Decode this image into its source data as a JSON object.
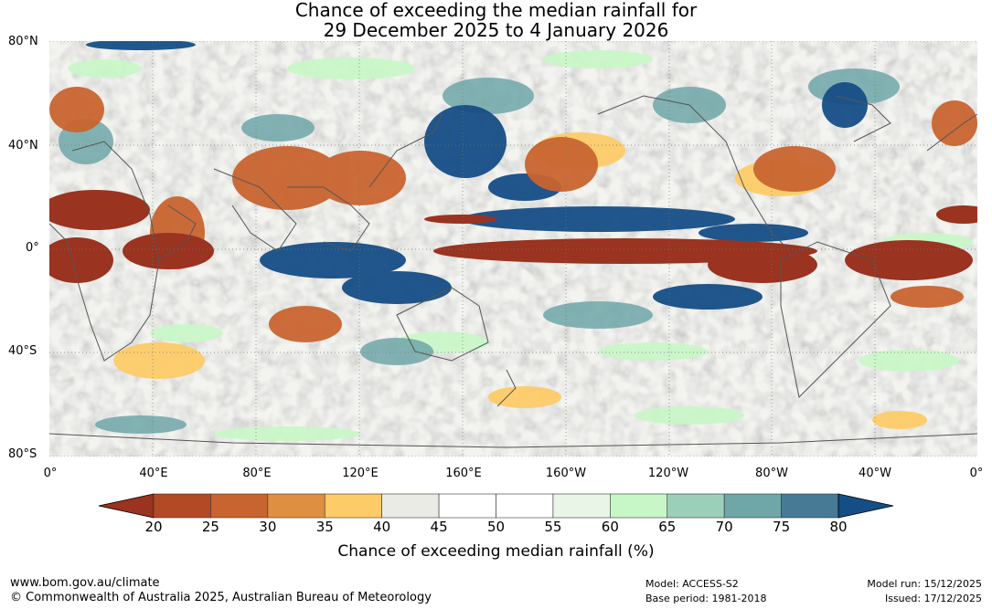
{
  "title": {
    "line1": "Chance of exceeding the median rainfall for",
    "line2": "29 December 2025 to 4 January 2026"
  },
  "map": {
    "lat_labels": [
      "80°N",
      "40°N",
      "0°",
      "40°S",
      "80°S"
    ],
    "lon_labels": [
      "0°",
      "40°E",
      "80°E",
      "120°E",
      "160°E",
      "160°W",
      "120°W",
      "80°W",
      "40°W",
      "0°"
    ]
  },
  "colorbar": {
    "title": "Chance of exceeding median rainfall (%)",
    "ticks": [
      "20",
      "25",
      "30",
      "35",
      "40",
      "45",
      "50",
      "55",
      "60",
      "65",
      "70",
      "75",
      "80"
    ],
    "colors": [
      "#9a3320",
      "#b24a25",
      "#c8642f",
      "#df8f42",
      "#fdcb68",
      "#ebebe5",
      "#ffffff",
      "#ffffff",
      "#e9f5e7",
      "#c8f7c7",
      "#9ccfb9",
      "#6fa6a8",
      "#467a95",
      "#154e86"
    ]
  },
  "footer": {
    "website": "www.bom.gov.au/climate",
    "copyright": "© Commonwealth of Australia 2025, Australian Bureau of Meteorology",
    "model": "Model: ACCESS-S2",
    "base_period": "Base period: 1981-2018",
    "model_run": "Model run: 15/12/2025",
    "issued": "Issued: 17/12/2025"
  }
}
